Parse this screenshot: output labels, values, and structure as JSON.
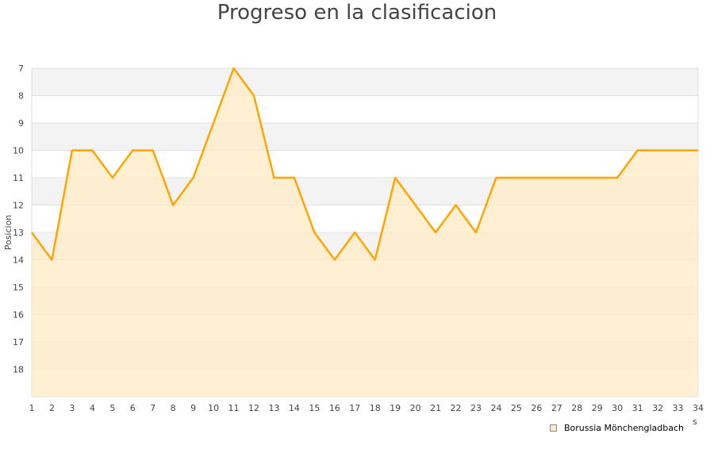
{
  "chart_data": {
    "type": "area",
    "title": "Progreso en la clasificacion",
    "ylabel": "Posicion",
    "xlabel_fragment": "s",
    "x": [
      1,
      2,
      3,
      4,
      5,
      6,
      7,
      8,
      9,
      10,
      11,
      12,
      13,
      14,
      15,
      16,
      17,
      18,
      19,
      20,
      21,
      22,
      23,
      24,
      25,
      26,
      27,
      28,
      29,
      30,
      31,
      32,
      33,
      34
    ],
    "series": [
      {
        "name": "Borussia Mönchengladbach",
        "values": [
          13,
          14,
          10,
          10,
          11,
          10,
          10,
          12,
          11,
          9,
          7,
          8,
          11,
          11,
          13,
          14,
          13,
          14,
          11,
          12,
          13,
          12,
          13,
          11,
          11,
          11,
          11,
          11,
          11,
          11,
          10,
          10,
          10,
          10
        ]
      }
    ],
    "yticks": [
      7,
      8,
      9,
      10,
      11,
      12,
      13,
      14,
      15,
      16,
      17,
      18
    ],
    "ylim": [
      19,
      7
    ],
    "y_inverted": true,
    "xlim": [
      1,
      34
    ],
    "grid": true,
    "legend": "bottom-right",
    "colors": {
      "line": "#ffa500",
      "fill": "#ffebc8",
      "band": "#f3f3f3",
      "grid": "#e0e0e0"
    }
  }
}
